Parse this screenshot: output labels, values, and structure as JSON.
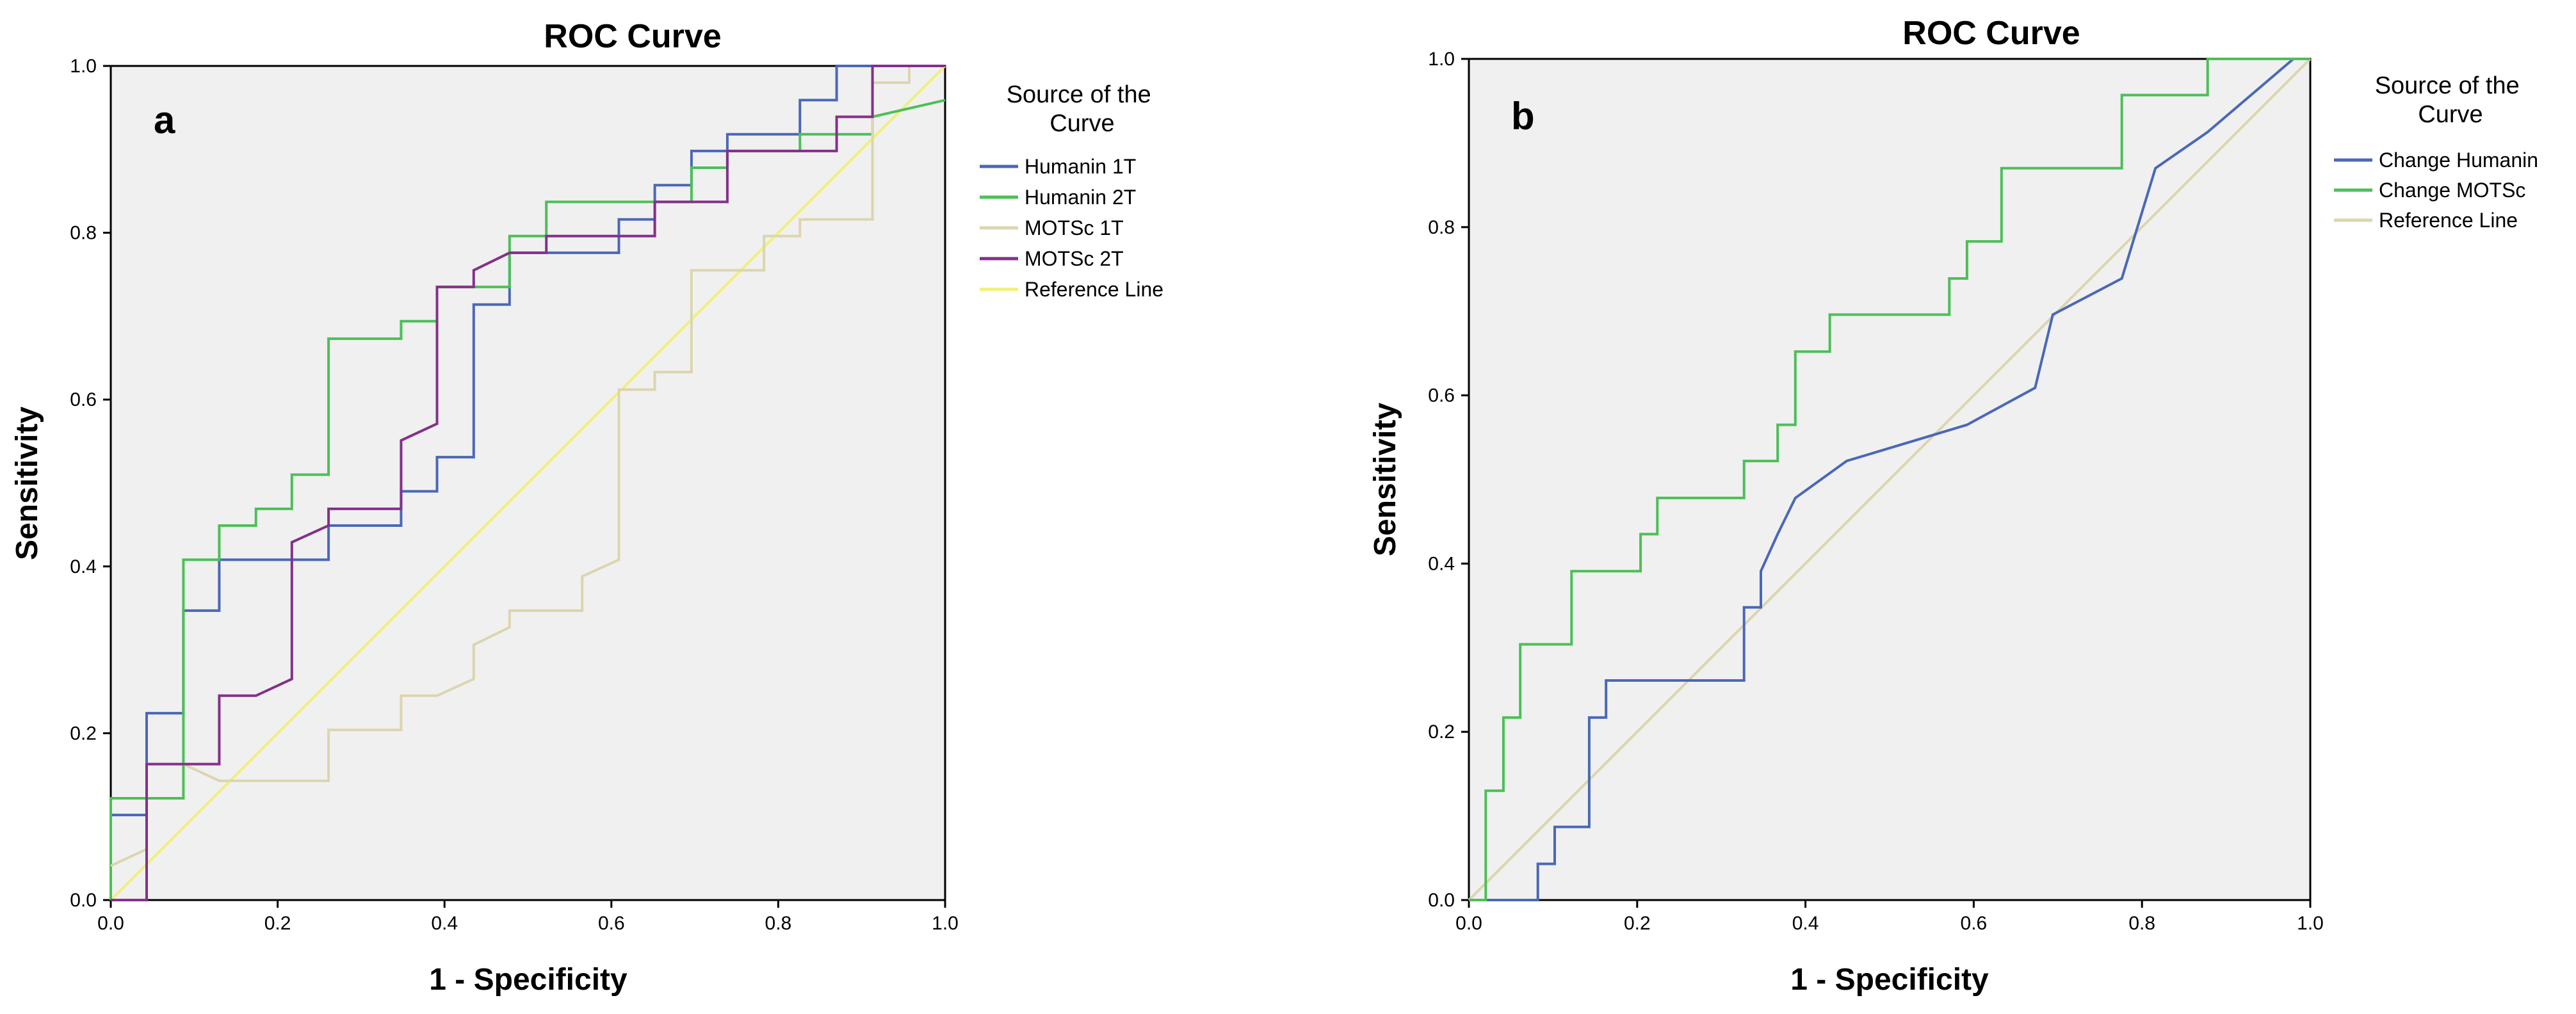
{
  "chart_data": [
    {
      "type": "line",
      "title": "ROC Curve",
      "panel_label": "a",
      "xlabel": "1 - Specificity",
      "ylabel": "Sensitivity",
      "xlim": [
        0,
        1
      ],
      "ylim": [
        0,
        1
      ],
      "xticks": [
        "0.0",
        "0.2",
        "0.4",
        "0.6",
        "0.8",
        "1.0"
      ],
      "yticks": [
        "0.0",
        "0.2",
        "0.4",
        "0.6",
        "0.8",
        "1.0"
      ],
      "grid": false,
      "legend_title": "Source of the Curve",
      "legend_position": "right",
      "series": [
        {
          "name": "Humanin 1T",
          "color": "#4a68b8",
          "x": [
            0,
            0,
            0.043,
            0.043,
            0.087,
            0.087,
            0.13,
            0.13,
            0.261,
            0.261,
            0.348,
            0.348,
            0.391,
            0.391,
            0.435,
            0.435,
            0.478,
            0.478,
            0.609,
            0.609,
            0.652,
            0.652,
            0.696,
            0.696,
            0.739,
            0.739,
            0.826,
            0.826,
            0.87,
            0.87,
            0.913,
            0.913,
            1.0
          ],
          "y": [
            0,
            0.102,
            0.102,
            0.224,
            0.224,
            0.347,
            0.347,
            0.408,
            0.408,
            0.449,
            0.449,
            0.49,
            0.49,
            0.531,
            0.531,
            0.714,
            0.714,
            0.776,
            0.776,
            0.816,
            0.816,
            0.857,
            0.857,
            0.898,
            0.898,
            0.918,
            0.918,
            0.959,
            0.959,
            1.0,
            1.0,
            1.0,
            1.0
          ]
        },
        {
          "name": "Humanin 2T",
          "color": "#4cbf57",
          "x": [
            0,
            0,
            0.087,
            0.087,
            0.13,
            0.13,
            0.174,
            0.174,
            0.217,
            0.217,
            0.261,
            0.261,
            0.348,
            0.348,
            0.391,
            0.391,
            0.478,
            0.478,
            0.522,
            0.522,
            0.609,
            0.609,
            0.696,
            0.696,
            0.739,
            0.739,
            0.826,
            0.826,
            0.87,
            0.87,
            0.913,
            0.913,
            1.0
          ],
          "y": [
            0,
            0.122,
            0.122,
            0.408,
            0.408,
            0.449,
            0.449,
            0.469,
            0.469,
            0.51,
            0.51,
            0.673,
            0.673,
            0.694,
            0.694,
            0.735,
            0.735,
            0.796,
            0.796,
            0.837,
            0.837,
            0.837,
            0.837,
            0.878,
            0.878,
            0.898,
            0.898,
            0.918,
            0.918,
            0.918,
            0.918,
            0.939,
            0.959
          ]
        },
        {
          "name": "MOTSc 1T",
          "color": "#dcd5ae",
          "x": [
            0,
            0.043,
            0.043,
            0.087,
            0.13,
            0.261,
            0.261,
            0.348,
            0.348,
            0.391,
            0.435,
            0.435,
            0.478,
            0.478,
            0.565,
            0.565,
            0.609,
            0.609,
            0.652,
            0.652,
            0.696,
            0.696,
            0.783,
            0.783,
            0.826,
            0.826,
            0.913,
            0.913,
            0.957,
            0.957,
            1.0
          ],
          "y": [
            0.041,
            0.061,
            0.163,
            0.163,
            0.143,
            0.143,
            0.204,
            0.204,
            0.245,
            0.245,
            0.265,
            0.306,
            0.327,
            0.347,
            0.347,
            0.388,
            0.408,
            0.612,
            0.612,
            0.633,
            0.633,
            0.755,
            0.755,
            0.796,
            0.796,
            0.816,
            0.816,
            0.98,
            0.98,
            1.0,
            1.0
          ]
        },
        {
          "name": "MOTSc 2T",
          "color": "#84308a",
          "x": [
            0,
            0.043,
            0.043,
            0.13,
            0.13,
            0.174,
            0.217,
            0.217,
            0.261,
            0.261,
            0.348,
            0.348,
            0.391,
            0.391,
            0.435,
            0.435,
            0.478,
            0.478,
            0.522,
            0.522,
            0.565,
            0.565,
            0.652,
            0.652,
            0.739,
            0.739,
            0.87,
            0.87,
            0.913,
            0.913,
            1.0
          ],
          "y": [
            0,
            0,
            0.163,
            0.163,
            0.245,
            0.245,
            0.265,
            0.429,
            0.449,
            0.469,
            0.469,
            0.551,
            0.571,
            0.735,
            0.735,
            0.755,
            0.776,
            0.776,
            0.776,
            0.796,
            0.796,
            0.796,
            0.796,
            0.837,
            0.837,
            0.898,
            0.898,
            0.939,
            0.939,
            1.0,
            1.0
          ]
        },
        {
          "name": "Reference Line",
          "color": "#f0f07a",
          "x": [
            0,
            1
          ],
          "y": [
            0,
            1
          ]
        }
      ]
    },
    {
      "type": "line",
      "title": "ROC Curve",
      "panel_label": "b",
      "xlabel": "1 - Specificity",
      "ylabel": "Sensitivity",
      "xlim": [
        0,
        1
      ],
      "ylim": [
        0,
        1
      ],
      "xticks": [
        "0.0",
        "0.2",
        "0.4",
        "0.6",
        "0.8",
        "1.0"
      ],
      "yticks": [
        "0.0",
        "0.2",
        "0.4",
        "0.6",
        "0.8",
        "1.0"
      ],
      "grid": false,
      "legend_title": "Source of the Curve",
      "legend_position": "right",
      "series": [
        {
          "name": "Change Humanin",
          "color": "#4a68b8",
          "x": [
            0,
            0.082,
            0.082,
            0.102,
            0.102,
            0.143,
            0.143,
            0.163,
            0.163,
            0.327,
            0.327,
            0.347,
            0.347,
            0.367,
            0.367,
            0.388,
            0.388,
            0.449,
            0.449,
            0.592,
            0.592,
            0.673,
            0.673,
            0.694,
            0.694,
            0.776,
            0.776,
            0.816,
            0.816,
            0.878,
            0.878,
            0.98,
            0.98,
            1.0
          ],
          "y": [
            0,
            0,
            0.043,
            0.043,
            0.087,
            0.087,
            0.217,
            0.217,
            0.261,
            0.261,
            0.348,
            0.348,
            0.391,
            0.435,
            0.435,
            0.478,
            0.478,
            0.522,
            0.522,
            0.565,
            0.565,
            0.609,
            0.609,
            0.696,
            0.696,
            0.739,
            0.739,
            0.87,
            0.87,
            0.913,
            0.913,
            1.0,
            1.0,
            1.0
          ]
        },
        {
          "name": "Change MOTSc",
          "color": "#4cbf57",
          "x": [
            0,
            0.02,
            0.02,
            0.041,
            0.041,
            0.061,
            0.061,
            0.122,
            0.122,
            0.204,
            0.204,
            0.224,
            0.224,
            0.327,
            0.327,
            0.367,
            0.367,
            0.388,
            0.388,
            0.429,
            0.429,
            0.571,
            0.571,
            0.592,
            0.592,
            0.633,
            0.633,
            0.776,
            0.776,
            0.878,
            0.878,
            1.0
          ],
          "y": [
            0,
            0,
            0.13,
            0.13,
            0.217,
            0.217,
            0.304,
            0.304,
            0.391,
            0.391,
            0.435,
            0.435,
            0.478,
            0.478,
            0.522,
            0.522,
            0.565,
            0.565,
            0.652,
            0.652,
            0.696,
            0.696,
            0.739,
            0.739,
            0.783,
            0.783,
            0.87,
            0.87,
            0.957,
            0.957,
            1.0,
            1.0
          ]
        },
        {
          "name": "Reference Line",
          "color": "#dcd5ae",
          "x": [
            0,
            1
          ],
          "y": [
            0,
            1
          ]
        }
      ]
    }
  ]
}
